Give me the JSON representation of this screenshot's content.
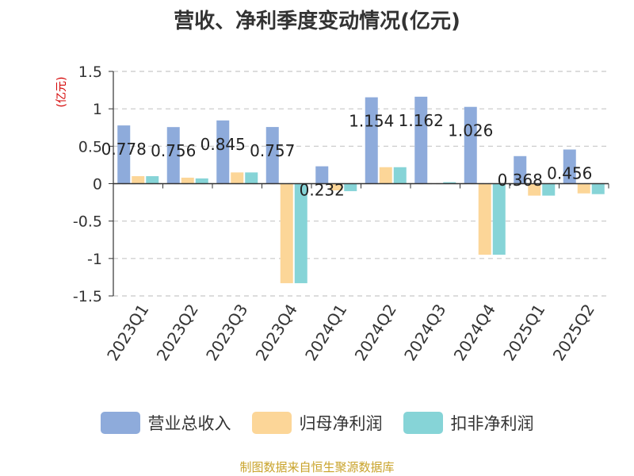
{
  "title": "营收、净利季度变动情况(亿元)",
  "source": "制图数据来自恒生聚源数据库",
  "chart_data": {
    "type": "bar",
    "title": "营收、净利季度变动情况(亿元)",
    "ylabel": "(亿元)",
    "ylim": [
      -1.5,
      1.5
    ],
    "yticks": [
      1.5,
      1,
      0.5,
      0,
      -0.5,
      -1,
      -1.5
    ],
    "ytick_labels": [
      "1.5",
      "1",
      "0.5",
      "0",
      "-0.5",
      "-1",
      "-1.5"
    ],
    "grid": true,
    "legend_position": "bottom",
    "categories": [
      "2023Q1",
      "2023Q2",
      "2023Q3",
      "2023Q4",
      "2024Q1",
      "2024Q2",
      "2024Q3",
      "2024Q4",
      "2025Q1",
      "2025Q2"
    ],
    "series": [
      {
        "name": "营业总收入",
        "color": "#8eabdb",
        "values": [
          0.778,
          0.756,
          0.845,
          0.757,
          0.232,
          1.154,
          1.162,
          1.026,
          0.368,
          0.456
        ],
        "labels": [
          "0.778",
          "0.756",
          "0.845",
          "0.757",
          "0.232",
          "1.154",
          "1.162",
          "1.026",
          "0.368",
          "0.456"
        ]
      },
      {
        "name": "归母净利润",
        "color": "#fcd698",
        "values": [
          0.1,
          0.08,
          0.15,
          -1.33,
          -0.09,
          0.22,
          0.0,
          -0.95,
          -0.16,
          -0.13
        ]
      },
      {
        "name": "扣非净利润",
        "color": "#86d4d7",
        "values": [
          0.1,
          0.07,
          0.15,
          -1.33,
          -0.1,
          0.22,
          0.02,
          -0.95,
          -0.16,
          -0.14
        ]
      }
    ]
  }
}
